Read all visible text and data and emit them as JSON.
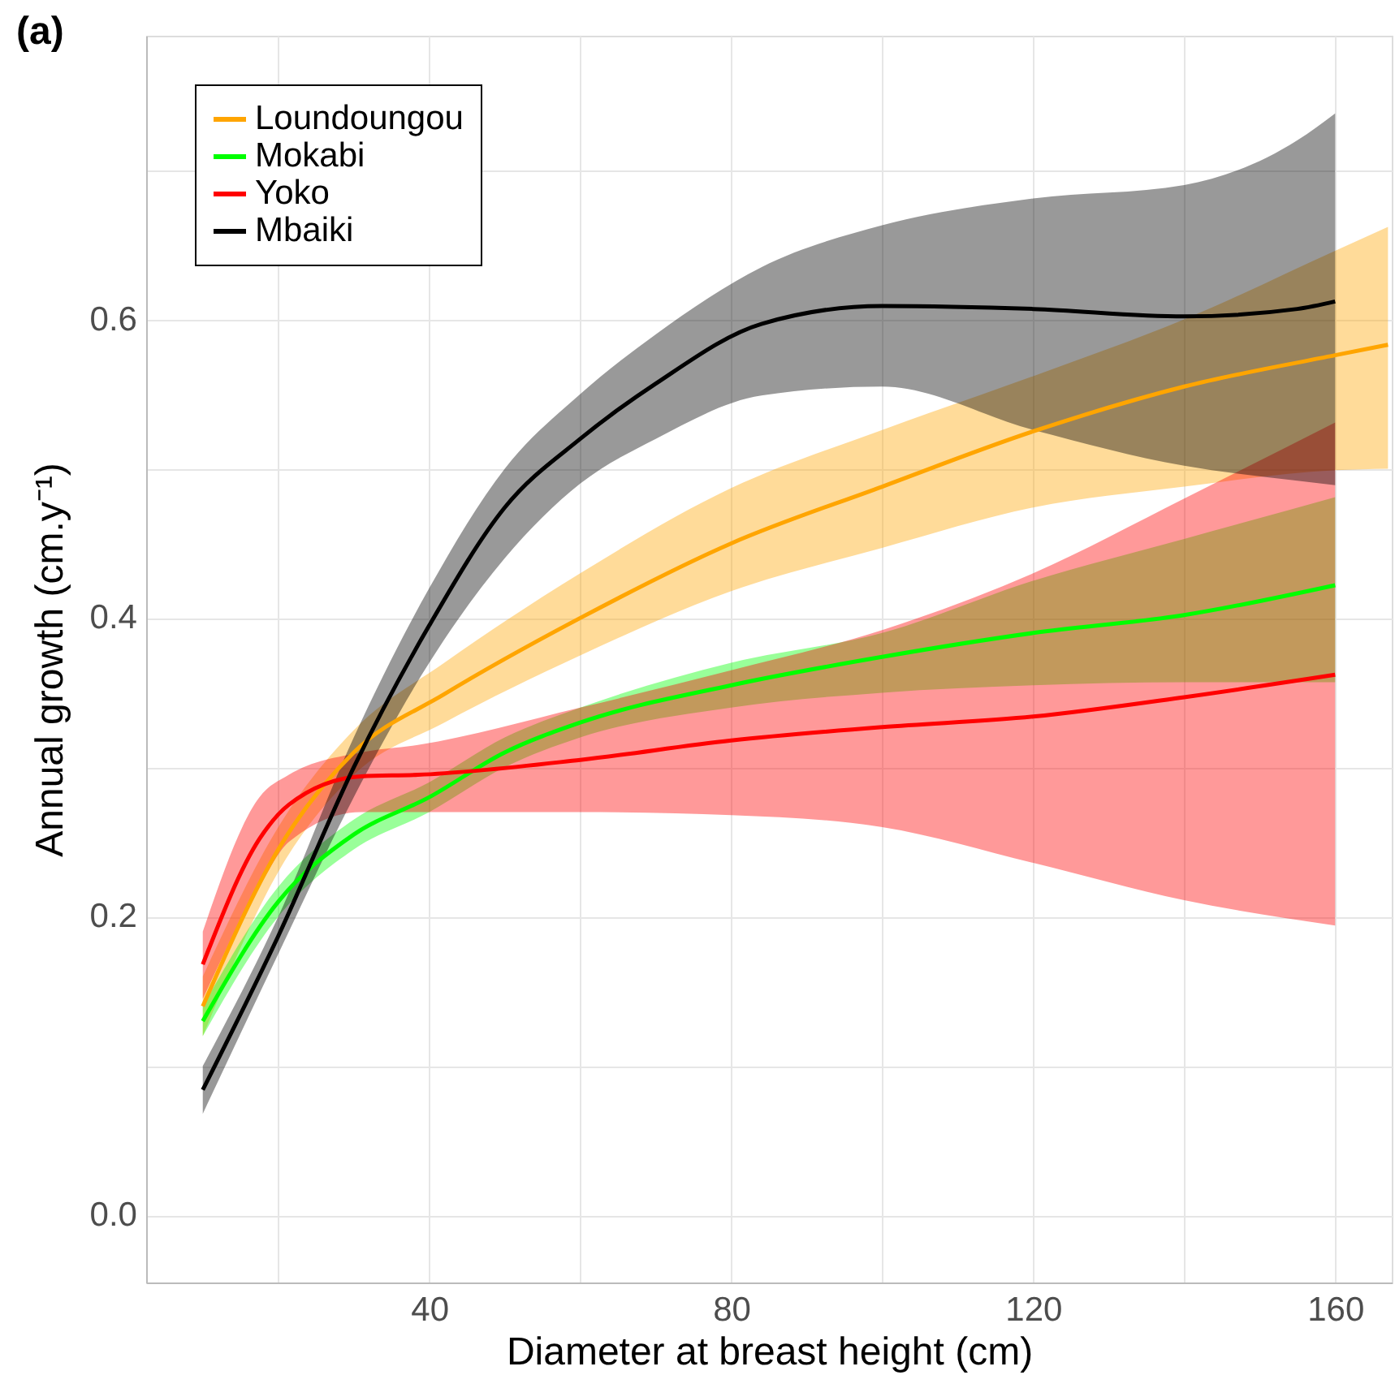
{
  "chart_data": {
    "type": "line",
    "title": "(a)",
    "xlabel": "Diameter at breast height (cm)",
    "ylabel": "Annual growth (cm.y⁻¹)",
    "xlim": [
      2.5,
      167.5
    ],
    "ylim": [
      -0.045,
      0.79
    ],
    "xticks": [
      {
        "value": 20,
        "label": null
      },
      40,
      {
        "value": 60,
        "label": null
      },
      80,
      {
        "value": 100,
        "label": null
      },
      120,
      {
        "value": 140,
        "label": null
      },
      160
    ],
    "yticks": [
      {
        "value": 0,
        "label": "0.0"
      },
      {
        "value": 0.1,
        "label": null
      },
      0.2,
      {
        "value": 0.3,
        "label": null
      },
      0.4,
      {
        "value": 0.5,
        "label": null
      },
      0.6,
      {
        "value": 0.7,
        "label": null
      }
    ],
    "grid": true,
    "legend": "top left",
    "line_style": "solid",
    "series": [
      {
        "name": "Loundoungou",
        "color": "#ffa500",
        "x": [
          10,
          20,
          30,
          42,
          60,
          80,
          100,
          120,
          140,
          160,
          167
        ],
        "values": [
          0.14,
          0.245,
          0.31,
          0.349,
          0.4,
          0.45,
          0.488,
          0.525,
          0.555,
          0.576,
          0.583
        ],
        "lower": [
          0.12,
          0.23,
          0.295,
          0.33,
          0.375,
          0.418,
          0.447,
          0.474,
          0.488,
          0.499,
          0.5
        ],
        "upper": [
          0.16,
          0.26,
          0.325,
          0.37,
          0.43,
          0.487,
          0.526,
          0.562,
          0.6,
          0.646,
          0.662
        ]
      },
      {
        "name": "Mokabi",
        "color": "#00ff00",
        "x": [
          10,
          20,
          30,
          40,
          50,
          60,
          80,
          100,
          120,
          140,
          160
        ],
        "values": [
          0.13,
          0.21,
          0.255,
          0.28,
          0.31,
          0.33,
          0.355,
          0.374,
          0.39,
          0.402,
          0.422
        ],
        "lower": [
          0.12,
          0.2,
          0.245,
          0.27,
          0.3,
          0.32,
          0.34,
          0.35,
          0.355,
          0.357,
          0.357
        ],
        "upper": [
          0.14,
          0.22,
          0.265,
          0.29,
          0.32,
          0.34,
          0.37,
          0.39,
          0.425,
          0.453,
          0.481
        ]
      },
      {
        "name": "Yoko",
        "color": "#ff0000",
        "x": [
          10,
          17.5,
          21.4,
          31,
          38.5,
          60,
          80,
          100,
          120,
          140,
          160
        ],
        "values": [
          0.168,
          0.252,
          0.275,
          0.294,
          0.295,
          0.305,
          0.318,
          0.327,
          0.334,
          0.347,
          0.362
        ],
        "lower": [
          0.145,
          0.22,
          0.25,
          0.27,
          0.27,
          0.27,
          0.268,
          0.26,
          0.236,
          0.211,
          0.194
        ],
        "upper": [
          0.19,
          0.28,
          0.295,
          0.31,
          0.315,
          0.34,
          0.365,
          0.392,
          0.43,
          0.48,
          0.531
        ]
      },
      {
        "name": "Mbaiki",
        "color": "#000000",
        "x": [
          10,
          20,
          30,
          40,
          50,
          60,
          70,
          84,
          100,
          120,
          140,
          155,
          160
        ],
        "values": [
          0.084,
          0.187,
          0.3,
          0.395,
          0.474,
          0.52,
          0.557,
          0.597,
          0.609,
          0.607,
          0.602,
          0.607,
          0.612
        ],
        "lower": [
          0.068,
          0.175,
          0.28,
          0.37,
          0.44,
          0.49,
          0.52,
          0.549,
          0.555,
          0.526,
          0.502,
          0.492,
          0.489
        ],
        "upper": [
          0.1,
          0.2,
          0.32,
          0.42,
          0.5,
          0.55,
          0.59,
          0.635,
          0.663,
          0.681,
          0.69,
          0.72,
          0.738
        ]
      }
    ]
  }
}
